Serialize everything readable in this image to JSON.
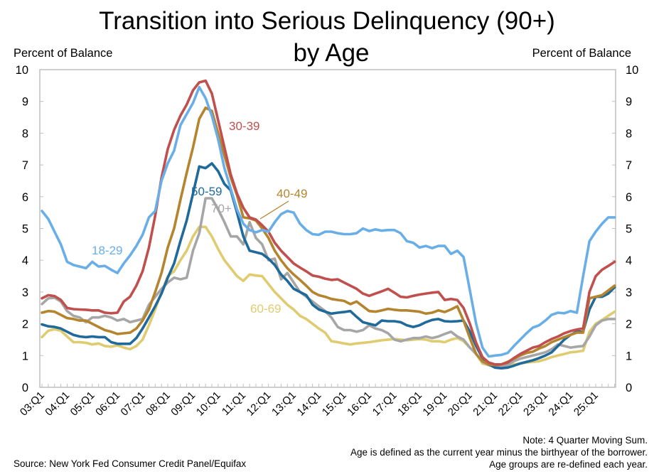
{
  "chart_data": {
    "type": "line",
    "title": "Transition into Serious Delinquency (90+)",
    "subtitle": "by Age",
    "ylabel_left": "Percent of Balance",
    "ylabel_right": "Percent of Balance",
    "ylim": [
      0,
      10
    ],
    "yticks": [
      0,
      1,
      2,
      3,
      4,
      5,
      6,
      7,
      8,
      9,
      10
    ],
    "grid": false,
    "x_tick_labels": [
      "03:Q1",
      "04:Q1",
      "05:Q1",
      "06:Q1",
      "07:Q1",
      "08:Q1",
      "09:Q1",
      "10:Q1",
      "11:Q1",
      "12:Q1",
      "13:Q1",
      "14:Q1",
      "15:Q1",
      "16:Q1",
      "17:Q1",
      "18:Q1",
      "19:Q1",
      "20:Q1",
      "21:Q1",
      "22:Q1",
      "23:Q1",
      "24:Q1",
      "25:Q1"
    ],
    "x_start": "2003:Q1",
    "x_end": "2025:Q4",
    "series": [
      {
        "name": "18-29",
        "color": "#6aaee8",
        "label": "18-29",
        "values": [
          5.55,
          5.3,
          4.9,
          4.5,
          3.95,
          3.85,
          3.8,
          3.75,
          3.95,
          3.8,
          3.82,
          3.7,
          3.6,
          3.9,
          4.15,
          4.45,
          4.8,
          5.35,
          5.55,
          6.5,
          7.05,
          7.45,
          8.25,
          8.6,
          8.95,
          9.45,
          9.1,
          8.55,
          7.8,
          6.9,
          6.25,
          5.6,
          5.15,
          4.95,
          4.88,
          4.95,
          4.9,
          5.2,
          5.45,
          5.55,
          5.5,
          5.15,
          4.95,
          4.82,
          4.8,
          4.9,
          4.9,
          4.85,
          4.82,
          4.82,
          4.85,
          5.0,
          4.92,
          4.97,
          4.93,
          4.95,
          4.95,
          4.85,
          4.6,
          4.55,
          4.4,
          4.45,
          4.38,
          4.45,
          4.45,
          4.2,
          4.3,
          4.1,
          3.05,
          2.0,
          1.25,
          0.97,
          1.0,
          1.02,
          1.08,
          1.3,
          1.5,
          1.7,
          1.88,
          1.95,
          2.1,
          2.28,
          2.35,
          2.33,
          2.4,
          2.35,
          3.5,
          4.6,
          4.9,
          5.15,
          5.35,
          5.35
        ]
      },
      {
        "name": "30-39",
        "color": "#c0504d",
        "label": "30-39",
        "values": [
          2.8,
          2.9,
          2.87,
          2.75,
          2.5,
          2.46,
          2.45,
          2.44,
          2.42,
          2.42,
          2.35,
          2.33,
          2.35,
          2.7,
          2.85,
          3.2,
          3.65,
          4.4,
          5.4,
          6.6,
          7.5,
          8.1,
          8.55,
          8.9,
          9.35,
          9.6,
          9.65,
          9.25,
          8.4,
          7.55,
          6.7,
          6.1,
          5.65,
          5.35,
          5.28,
          5.1,
          4.9,
          4.55,
          4.3,
          4.1,
          3.9,
          3.77,
          3.65,
          3.52,
          3.48,
          3.42,
          3.38,
          3.4,
          3.3,
          3.2,
          3.1,
          2.95,
          2.88,
          2.95,
          3.02,
          3.1,
          2.98,
          2.85,
          2.83,
          2.88,
          2.92,
          2.95,
          2.98,
          3.0,
          2.75,
          2.78,
          2.75,
          2.5,
          2.0,
          1.4,
          0.95,
          0.78,
          0.72,
          0.72,
          0.78,
          0.92,
          1.05,
          1.15,
          1.25,
          1.3,
          1.42,
          1.52,
          1.6,
          1.7,
          1.77,
          1.82,
          1.85,
          3.0,
          3.5,
          3.7,
          3.82,
          3.95
        ]
      },
      {
        "name": "40-49",
        "color": "#b5842e",
        "label": "40-49",
        "values": [
          2.35,
          2.4,
          2.38,
          2.28,
          2.18,
          2.15,
          2.1,
          2.1,
          2.0,
          1.9,
          1.8,
          1.75,
          1.68,
          1.7,
          1.72,
          1.85,
          2.1,
          2.45,
          3.0,
          3.6,
          4.4,
          5.0,
          5.9,
          6.75,
          7.55,
          8.45,
          8.8,
          8.7,
          8.0,
          7.3,
          6.6,
          6.05,
          5.35,
          5.32,
          5.25,
          5.0,
          4.7,
          4.3,
          4.0,
          3.75,
          3.55,
          3.38,
          3.2,
          3.0,
          2.9,
          2.85,
          2.78,
          2.75,
          2.72,
          2.62,
          2.7,
          2.55,
          2.4,
          2.38,
          2.42,
          2.47,
          2.44,
          2.42,
          2.42,
          2.4,
          2.38,
          2.32,
          2.35,
          2.42,
          2.37,
          2.45,
          2.55,
          2.1,
          1.55,
          1.05,
          0.82,
          0.72,
          0.7,
          0.72,
          0.8,
          0.9,
          1.0,
          1.08,
          1.12,
          1.22,
          1.3,
          1.42,
          1.5,
          1.58,
          1.65,
          1.72,
          1.72,
          2.8,
          2.85,
          2.9,
          3.05,
          3.2
        ]
      },
      {
        "name": "50-59",
        "color": "#1f6a9a",
        "label": "50-59",
        "values": [
          1.98,
          1.92,
          1.9,
          1.85,
          1.75,
          1.65,
          1.6,
          1.58,
          1.6,
          1.58,
          1.58,
          1.42,
          1.37,
          1.37,
          1.37,
          1.55,
          1.85,
          2.2,
          2.55,
          2.95,
          3.45,
          3.9,
          4.6,
          5.25,
          6.1,
          6.95,
          6.9,
          7.05,
          6.8,
          6.4,
          6.2,
          5.5,
          4.75,
          4.3,
          4.25,
          4.2,
          4.05,
          3.85,
          3.55,
          3.35,
          3.1,
          3.0,
          2.9,
          2.6,
          2.45,
          2.38,
          2.32,
          2.35,
          2.37,
          2.4,
          2.22,
          2.05,
          2.0,
          1.95,
          2.1,
          2.08,
          2.08,
          2.05,
          1.95,
          1.9,
          1.95,
          2.05,
          2.12,
          2.15,
          2.08,
          2.07,
          2.08,
          2.1,
          1.75,
          1.3,
          0.92,
          0.72,
          0.62,
          0.6,
          0.62,
          0.68,
          0.75,
          0.8,
          0.85,
          0.92,
          1.0,
          1.1,
          1.3,
          1.5,
          1.65,
          1.75,
          1.75,
          2.45,
          2.85,
          2.85,
          2.95,
          3.15
        ]
      },
      {
        "name": "60-69",
        "color": "#e0cc70",
        "label": "60-69",
        "values": [
          1.58,
          1.78,
          1.83,
          1.78,
          1.6,
          1.42,
          1.42,
          1.4,
          1.35,
          1.38,
          1.3,
          1.28,
          1.32,
          1.25,
          1.2,
          1.3,
          1.5,
          1.95,
          2.45,
          3.0,
          3.5,
          3.65,
          4.0,
          4.3,
          4.75,
          5.05,
          5.05,
          4.75,
          4.35,
          4.0,
          3.75,
          3.5,
          3.35,
          3.55,
          3.52,
          3.5,
          3.25,
          3.0,
          2.8,
          2.6,
          2.45,
          2.25,
          2.15,
          2.0,
          1.85,
          1.72,
          1.45,
          1.42,
          1.38,
          1.35,
          1.38,
          1.4,
          1.42,
          1.45,
          1.48,
          1.5,
          1.52,
          1.5,
          1.48,
          1.5,
          1.52,
          1.5,
          1.45,
          1.45,
          1.42,
          1.5,
          1.55,
          1.45,
          1.25,
          1.05,
          0.75,
          0.7,
          0.68,
          0.7,
          0.72,
          0.72,
          0.75,
          0.78,
          0.8,
          0.82,
          0.88,
          0.95,
          1.0,
          1.05,
          1.1,
          1.12,
          1.15,
          1.75,
          2.0,
          2.12,
          2.25,
          2.38
        ]
      },
      {
        "name": "70+",
        "color": "#a6a6a6",
        "label": "70+",
        "values": [
          2.62,
          2.8,
          2.82,
          2.7,
          2.4,
          2.25,
          2.2,
          2.05,
          2.2,
          2.2,
          2.25,
          2.2,
          2.1,
          2.15,
          2.05,
          2.1,
          2.15,
          2.6,
          2.85,
          3.1,
          3.3,
          3.45,
          3.4,
          3.45,
          4.3,
          4.85,
          5.95,
          5.95,
          5.6,
          5.2,
          4.75,
          4.75,
          4.5,
          5.2,
          4.7,
          4.5,
          4.0,
          4.05,
          3.4,
          3.6,
          3.3,
          3.0,
          2.85,
          2.7,
          2.55,
          2.4,
          2.2,
          1.9,
          1.8,
          1.8,
          1.75,
          1.8,
          1.95,
          1.85,
          1.8,
          1.7,
          1.5,
          1.45,
          1.5,
          1.55,
          1.55,
          1.6,
          1.55,
          1.6,
          1.68,
          1.75,
          1.6,
          1.5,
          1.25,
          1.05,
          0.8,
          0.7,
          0.65,
          0.62,
          0.7,
          0.82,
          0.9,
          0.95,
          1.0,
          1.05,
          1.1,
          1.2,
          1.35,
          1.3,
          1.25,
          1.28,
          1.3,
          1.6,
          1.95,
          2.1,
          2.15,
          2.15
        ]
      }
    ],
    "annotations": [
      {
        "text": "30-39",
        "series": "30-39"
      },
      {
        "text": "40-49",
        "series": "40-49",
        "leader_line": true
      },
      {
        "text": "50-59",
        "series": "50-59"
      },
      {
        "text": "70+",
        "series": "70+"
      },
      {
        "text": "18-29",
        "series": "18-29"
      },
      {
        "text": "60-69",
        "series": "60-69"
      }
    ]
  },
  "notes": [
    "Note: 4 Quarter Moving Sum.",
    "Age is defined as the current year minus the birthyear of the borrower.",
    "Age groups are re-defined each year."
  ],
  "source": "Source: New York Fed Consumer Credit Panel/Equifax"
}
